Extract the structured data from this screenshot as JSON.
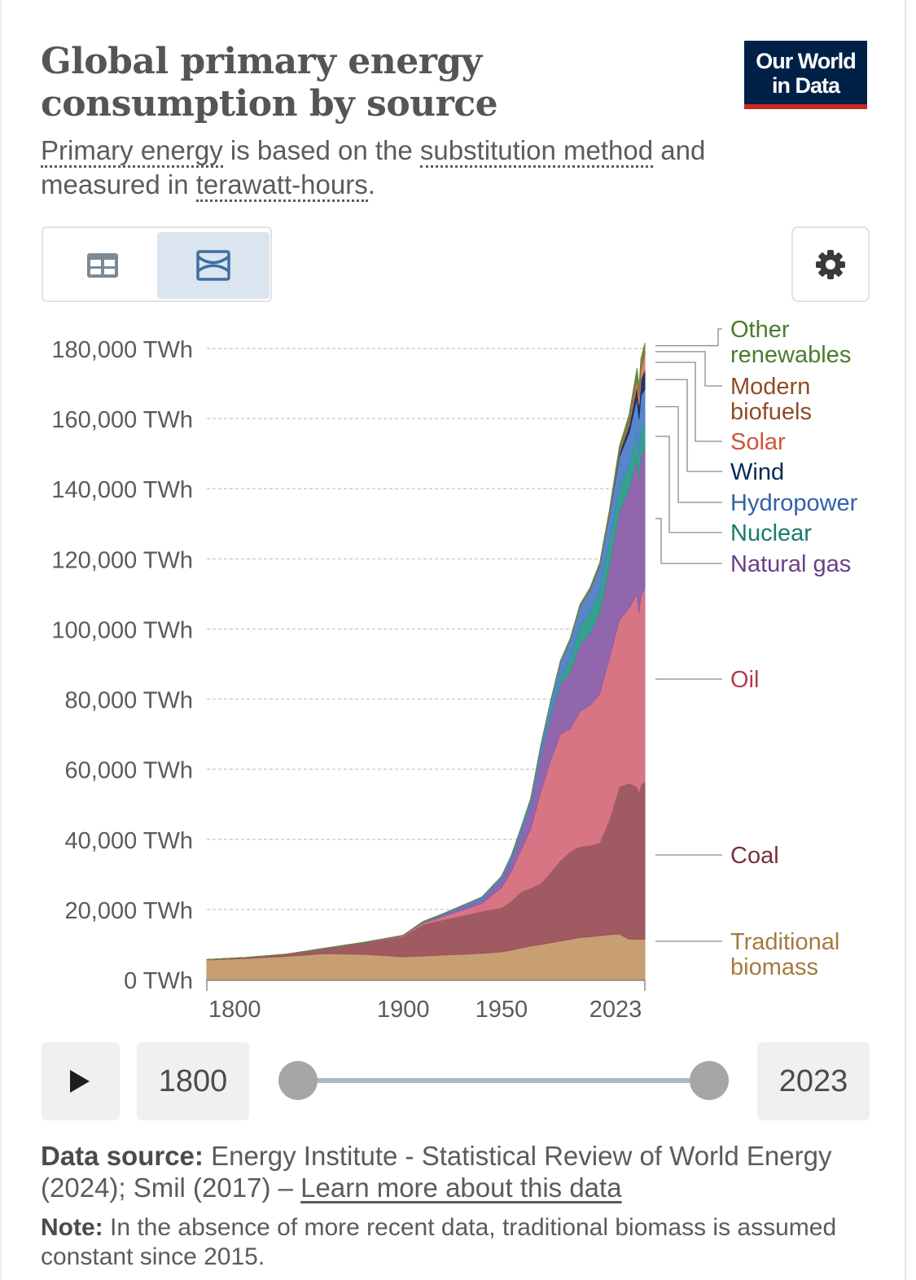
{
  "header": {
    "title": "Global primary energy consumption by source",
    "subtitle_parts": {
      "link1": "Primary energy",
      "text1": " is based on the ",
      "link2": "substitution method",
      "text2": " and measured in ",
      "link3": "terawatt-hours",
      "text3": "."
    },
    "logo_line1": "Our World",
    "logo_line2": "in Data"
  },
  "toolbar": {
    "table_icon": "table-icon",
    "chart_icon": "area-chart-icon",
    "settings_icon": "gear-icon",
    "active_view": "chart"
  },
  "chart_data": {
    "type": "area",
    "stacked": true,
    "title": "Global primary energy consumption by source",
    "unit": "TWh",
    "ylim": [
      0,
      180000
    ],
    "yticks": [
      {
        "value": 0,
        "label": "0 TWh"
      },
      {
        "value": 20000,
        "label": "20,000 TWh"
      },
      {
        "value": 40000,
        "label": "40,000 TWh"
      },
      {
        "value": 60000,
        "label": "60,000 TWh"
      },
      {
        "value": 80000,
        "label": "80,000 TWh"
      },
      {
        "value": 100000,
        "label": "100,000 TWh"
      },
      {
        "value": 120000,
        "label": "120,000 TWh"
      },
      {
        "value": 140000,
        "label": "140,000 TWh"
      },
      {
        "value": 160000,
        "label": "160,000 TWh"
      },
      {
        "value": 180000,
        "label": "180,000 TWh"
      }
    ],
    "xlim": [
      1800,
      2023
    ],
    "xticks": [
      {
        "value": 1800,
        "label": "1800"
      },
      {
        "value": 1900,
        "label": "1900"
      },
      {
        "value": 1950,
        "label": "1950"
      },
      {
        "value": 2023,
        "label": "2023"
      }
    ],
    "x": [
      1800,
      1820,
      1840,
      1860,
      1880,
      1900,
      1910,
      1920,
      1930,
      1940,
      1950,
      1955,
      1960,
      1965,
      1970,
      1975,
      1980,
      1985,
      1990,
      1995,
      2000,
      2005,
      2010,
      2015,
      2019,
      2020,
      2021,
      2023
    ],
    "series": [
      {
        "name": "Traditional biomass",
        "color": "#c49a6c",
        "label_color": "#a57a3f",
        "values": [
          5600,
          6000,
          6600,
          7400,
          7200,
          6500,
          6700,
          7000,
          7200,
          7500,
          7900,
          8400,
          9000,
          9600,
          10000,
          10500,
          11000,
          11500,
          12000,
          12200,
          12500,
          12800,
          13000,
          11500,
          11500,
          11500,
          11500,
          11500
        ]
      },
      {
        "name": "Coal",
        "color": "#9b5159",
        "label_color": "#7a2f3a",
        "values": [
          100,
          300,
          600,
          1500,
          3400,
          5800,
          9000,
          10000,
          11000,
          12000,
          12600,
          14000,
          16000,
          16500,
          17500,
          20000,
          23000,
          25000,
          26000,
          26000,
          26500,
          33000,
          42000,
          44500,
          43500,
          42000,
          44000,
          45000
        ]
      },
      {
        "name": "Oil",
        "color": "#d66e7d",
        "label_color": "#b93a4d",
        "values": [
          0,
          0,
          0,
          0,
          0,
          200,
          400,
          900,
          1600,
          2200,
          5700,
          8500,
          12000,
          17000,
          26000,
          32000,
          36000,
          35000,
          38500,
          40000,
          42500,
          46000,
          47500,
          50000,
          55000,
          51000,
          54000,
          55000
        ]
      },
      {
        "name": "Natural gas",
        "color": "#8b5ea8",
        "label_color": "#6b3e8a",
        "values": [
          0,
          0,
          0,
          0,
          0,
          60,
          200,
          400,
          700,
          900,
          2100,
          3000,
          4500,
          6300,
          10000,
          12300,
          14200,
          16400,
          19000,
          20500,
          23000,
          26500,
          31000,
          34000,
          39000,
          38300,
          40000,
          40000
        ]
      },
      {
        "name": "Nuclear",
        "color": "#2c9b8a",
        "label_color": "#187b6e",
        "values": [
          0,
          0,
          0,
          0,
          0,
          0,
          0,
          0,
          0,
          0,
          0,
          0,
          0,
          50,
          200,
          1000,
          2000,
          4000,
          5500,
          6200,
          6800,
          7100,
          7000,
          6800,
          7100,
          6800,
          7000,
          6900
        ]
      },
      {
        "name": "Hydropower",
        "color": "#4e7fc8",
        "label_color": "#3360a9",
        "values": [
          0,
          0,
          0,
          0,
          0,
          50,
          200,
          400,
          600,
          900,
          1100,
          1400,
          1800,
          2300,
          3000,
          3500,
          4500,
          5000,
          5500,
          6100,
          6700,
          7300,
          8600,
          9200,
          10000,
          10300,
          10200,
          10000
        ]
      },
      {
        "name": "Wind",
        "color": "#1a2a5a",
        "label_color": "#00295b",
        "values": [
          0,
          0,
          0,
          0,
          0,
          0,
          0,
          0,
          0,
          0,
          0,
          0,
          0,
          0,
          0,
          0,
          0,
          0,
          0,
          20,
          80,
          270,
          900,
          2200,
          3600,
          4000,
          4600,
          5500
        ]
      },
      {
        "name": "Solar",
        "color": "#e07a62",
        "label_color": "#d2553b",
        "values": [
          0,
          0,
          0,
          0,
          0,
          0,
          0,
          0,
          0,
          0,
          0,
          0,
          0,
          0,
          0,
          0,
          0,
          0,
          0,
          0,
          5,
          10,
          90,
          650,
          1800,
          2200,
          2700,
          4300
        ]
      },
      {
        "name": "Modern biofuels",
        "color": "#a0623c",
        "label_color": "#8f4b25",
        "values": [
          0,
          0,
          0,
          0,
          0,
          0,
          0,
          0,
          0,
          0,
          0,
          0,
          0,
          0,
          0,
          0,
          100,
          200,
          250,
          300,
          350,
          600,
          1200,
          1300,
          1600,
          1500,
          1600,
          1800
        ]
      },
      {
        "name": "Other renewables",
        "color": "#5e8b3f",
        "label_color": "#4b7b2f",
        "values": [
          0,
          0,
          0,
          0,
          0,
          0,
          0,
          0,
          0,
          0,
          0,
          0,
          0,
          0,
          0,
          50,
          100,
          200,
          300,
          350,
          400,
          500,
          700,
          1100,
          1300,
          1400,
          1500,
          1600
        ]
      }
    ],
    "legend": "right, labels at series end",
    "grid": "horizontal dashed"
  },
  "timeline": {
    "play_icon": "play-icon",
    "start_year": "1800",
    "end_year": "2023"
  },
  "footer": {
    "source_label": "Data source:",
    "source_text": " Energy Institute - Statistical Review of World Energy (2024); Smil (2017) – ",
    "source_link": "Learn more about this data",
    "note_label": "Note:",
    "note_text": " In the absence of more recent data, traditional biomass is assumed constant since 2015."
  }
}
